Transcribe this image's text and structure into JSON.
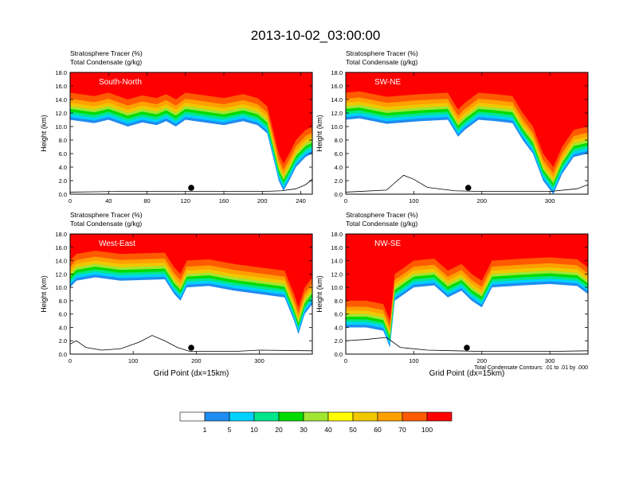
{
  "title": "2013-10-02_03:00:00",
  "contour_note": "Total Condensate Contours: .01 to .01 by .000",
  "colorbar": {
    "colors": [
      "#ffffff",
      "#1e8cf0",
      "#00d2ff",
      "#00e68c",
      "#00dc00",
      "#a0e632",
      "#ffff00",
      "#f0c800",
      "#ffa000",
      "#ff5a00",
      "#ff0000"
    ],
    "labels": [
      "1",
      "5",
      "10",
      "20",
      "30",
      "40",
      "50",
      "60",
      "70",
      "100"
    ]
  },
  "chart_data": [
    {
      "type": "heatmap",
      "name": "South-North",
      "label": "South-North",
      "subtitle1": "Stratosphere Tracer   (%)",
      "subtitle2": "Total Condensate   (g/kg)",
      "ylabel": "Height (km)",
      "xlabel": "",
      "xlim": [
        0,
        252
      ],
      "ylim": [
        0,
        18
      ],
      "xticks": [
        "0",
        "40",
        "80",
        "120",
        "160",
        "200",
        "240"
      ],
      "xtick_values": [
        0,
        40,
        80,
        120,
        160,
        200,
        240
      ],
      "yticks": [
        "0.0",
        "2.0",
        "4.0",
        "6.0",
        "8.0",
        "10.0",
        "12.0",
        "14.0",
        "16.0",
        "18.0"
      ],
      "marker_x": 126,
      "tropopause_height": [
        [
          0,
          15
        ],
        [
          25,
          14.5
        ],
        [
          40,
          15
        ],
        [
          60,
          14
        ],
        [
          75,
          14.6
        ],
        [
          90,
          14.2
        ],
        [
          100,
          14.8
        ],
        [
          110,
          14
        ],
        [
          120,
          15
        ],
        [
          140,
          14.6
        ],
        [
          160,
          14.2
        ],
        [
          180,
          14.8
        ],
        [
          195,
          14.2
        ],
        [
          205,
          13
        ],
        [
          212,
          9
        ],
        [
          217,
          6
        ],
        [
          222,
          4.5
        ],
        [
          228,
          6
        ],
        [
          235,
          8
        ],
        [
          245,
          9.5
        ],
        [
          252,
          10
        ]
      ],
      "terrain": [
        [
          0,
          0.3
        ],
        [
          50,
          0.4
        ],
        [
          100,
          0.4
        ],
        [
          150,
          0.4
        ],
        [
          200,
          0.4
        ],
        [
          220,
          0.5
        ],
        [
          235,
          0.8
        ],
        [
          245,
          1.4
        ],
        [
          252,
          2.2
        ]
      ]
    },
    {
      "type": "heatmap",
      "name": "SW-NE",
      "label": "SW-NE",
      "subtitle1": "Stratosphere Tracer   (%)",
      "subtitle2": "Total Condensate   (g/kg)",
      "ylabel": "Height (km)",
      "xlabel": "",
      "xlim": [
        0,
        356
      ],
      "ylim": [
        0,
        18
      ],
      "xticks": [
        "0",
        "100",
        "200",
        "300"
      ],
      "xtick_values": [
        0,
        100,
        200,
        300
      ],
      "yticks": [
        "0.0",
        "2.0",
        "4.0",
        "6.0",
        "8.0",
        "10.0",
        "12.0",
        "14.0",
        "16.0",
        "18.0"
      ],
      "marker_x": 180,
      "tropopause_height": [
        [
          0,
          15
        ],
        [
          20,
          15.2
        ],
        [
          60,
          14.4
        ],
        [
          110,
          14.8
        ],
        [
          150,
          15
        ],
        [
          165,
          12.5
        ],
        [
          175,
          13.5
        ],
        [
          195,
          15
        ],
        [
          220,
          14.8
        ],
        [
          245,
          14.5
        ],
        [
          260,
          12
        ],
        [
          275,
          10
        ],
        [
          290,
          6
        ],
        [
          305,
          4
        ],
        [
          318,
          7
        ],
        [
          335,
          9.5
        ],
        [
          356,
          10
        ]
      ],
      "terrain": [
        [
          0,
          0.3
        ],
        [
          60,
          0.6
        ],
        [
          70,
          1.5
        ],
        [
          85,
          2.8
        ],
        [
          100,
          2.2
        ],
        [
          120,
          1
        ],
        [
          160,
          0.5
        ],
        [
          200,
          0.4
        ],
        [
          300,
          0.4
        ],
        [
          340,
          0.8
        ],
        [
          356,
          1.4
        ]
      ]
    },
    {
      "type": "heatmap",
      "name": "West-East",
      "label": "West-East",
      "subtitle1": "Stratosphere Tracer   (%)",
      "subtitle2": "Total Condensate   (g/kg)",
      "ylabel": "Height (km)",
      "xlabel": "Grid Point (dx=15km)",
      "xlim": [
        0,
        384
      ],
      "ylim": [
        0,
        18
      ],
      "xticks": [
        "0",
        "100",
        "200",
        "300"
      ],
      "xtick_values": [
        0,
        100,
        200,
        300
      ],
      "yticks": [
        "0.0",
        "2.0",
        "4.0",
        "6.0",
        "8.0",
        "10.0",
        "12.0",
        "14.0",
        "16.0",
        "18.0"
      ],
      "marker_x": 192,
      "tropopause_height": [
        [
          0,
          14
        ],
        [
          10,
          15
        ],
        [
          40,
          15.5
        ],
        [
          80,
          15
        ],
        [
          150,
          15.2
        ],
        [
          165,
          13
        ],
        [
          175,
          12
        ],
        [
          185,
          14
        ],
        [
          220,
          14.2
        ],
        [
          260,
          13.5
        ],
        [
          300,
          13
        ],
        [
          340,
          12.5
        ],
        [
          355,
          9
        ],
        [
          362,
          7
        ],
        [
          372,
          10
        ],
        [
          384,
          11.5
        ]
      ],
      "terrain": [
        [
          0,
          1.5
        ],
        [
          10,
          2
        ],
        [
          25,
          1
        ],
        [
          50,
          0.6
        ],
        [
          80,
          0.8
        ],
        [
          110,
          1.8
        ],
        [
          130,
          2.8
        ],
        [
          150,
          2
        ],
        [
          170,
          1
        ],
        [
          190,
          0.4
        ],
        [
          260,
          0.4
        ],
        [
          300,
          0.6
        ],
        [
          384,
          0.5
        ]
      ]
    },
    {
      "type": "heatmap",
      "name": "NW-SE",
      "label": "NW-SE",
      "subtitle1": "Stratosphere Tracer   (%)",
      "subtitle2": "Total Condensate   (g/kg)",
      "ylabel": "Height (km)",
      "xlabel": "Grid Point (dx=15km)",
      "xlim": [
        0,
        356
      ],
      "ylim": [
        0,
        18
      ],
      "xticks": [
        "0",
        "100",
        "200",
        "300"
      ],
      "xtick_values": [
        0,
        100,
        200,
        300
      ],
      "yticks": [
        "0.0",
        "2.0",
        "4.0",
        "6.0",
        "8.0",
        "10.0",
        "12.0",
        "14.0",
        "16.0",
        "18.0"
      ],
      "marker_x": 178,
      "tropopause_height": [
        [
          0,
          8
        ],
        [
          30,
          8
        ],
        [
          55,
          7.5
        ],
        [
          65,
          5
        ],
        [
          72,
          12
        ],
        [
          100,
          14
        ],
        [
          130,
          14.3
        ],
        [
          150,
          12.5
        ],
        [
          170,
          13.5
        ],
        [
          185,
          12
        ],
        [
          200,
          11
        ],
        [
          215,
          14
        ],
        [
          260,
          14.3
        ],
        [
          300,
          14.5
        ],
        [
          340,
          14.2
        ],
        [
          356,
          13
        ]
      ],
      "terrain": [
        [
          0,
          2
        ],
        [
          30,
          2.2
        ],
        [
          60,
          2.5
        ],
        [
          80,
          1
        ],
        [
          120,
          0.6
        ],
        [
          160,
          0.5
        ],
        [
          200,
          0.4
        ],
        [
          300,
          0.4
        ],
        [
          356,
          0.5
        ]
      ]
    }
  ]
}
